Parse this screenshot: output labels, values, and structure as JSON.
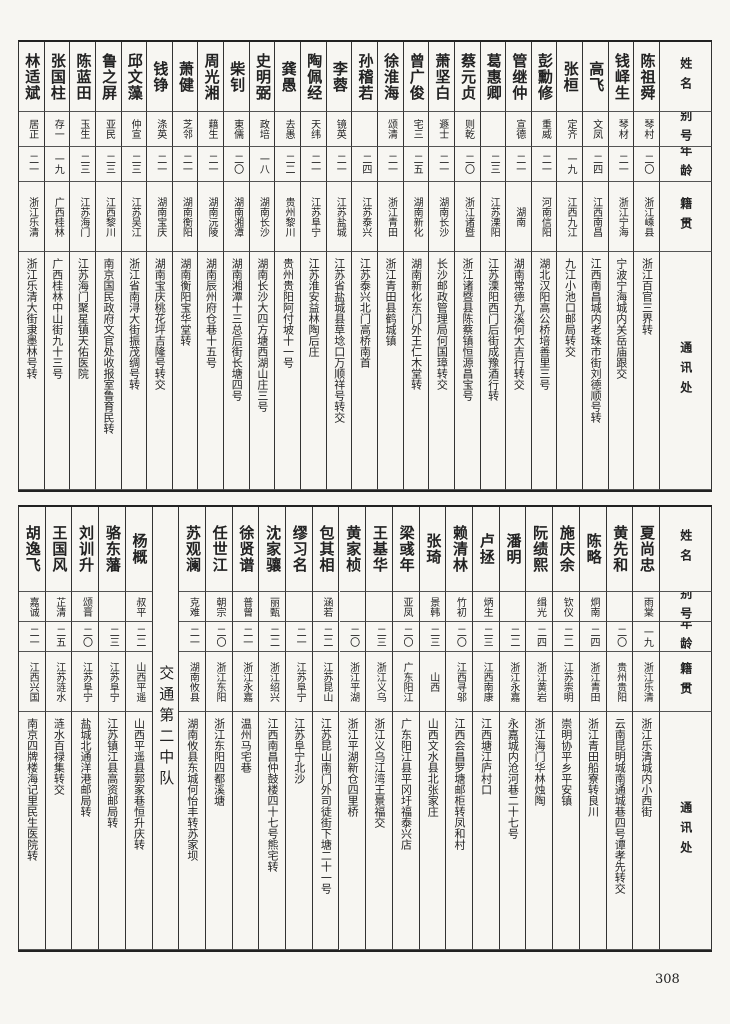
{
  "top": {
    "headers": [
      "姓名",
      "别号",
      "年龄",
      "籍贯",
      "通讯处"
    ],
    "rows": [
      {
        "name": "陈祖舜",
        "alias": "琴村",
        "age": "二〇",
        "native": "浙江嵊县",
        "address": "浙江百官三界转"
      },
      {
        "name": "钱峄生",
        "alias": "琴材",
        "age": "二一",
        "native": "浙江宁海",
        "address": "宁波宁海城内关岳庙跟交"
      },
      {
        "name": "高飞",
        "alias": "文凤",
        "age": "二四",
        "native": "江西南昌",
        "address": "江西南昌城内老珠市街刘德顺号转"
      },
      {
        "name": "张桓",
        "alias": "定齐",
        "age": "一九",
        "native": "江西九江",
        "address": "九江小池口邮局转交"
      },
      {
        "name": "彭勳修",
        "alias": "重威",
        "age": "二一",
        "native": "河南信阳",
        "address": "湖北汉阳高公桥培善里三号"
      },
      {
        "name": "管继仲",
        "alias": "宣德",
        "age": "二一",
        "native": "湖南",
        "address": "湖南常德九溪何大吉行转交"
      },
      {
        "name": "葛惠卿",
        "alias": null,
        "age": "二三",
        "native": "江苏溧阳",
        "address": "江苏溧阳西门后街成豫酒行转"
      },
      {
        "name": "蔡元贞",
        "alias": "则乾",
        "age": "二〇",
        "native": "浙江诸暨",
        "address": "浙江诸暨县陈蔡镇恒源昌宝号"
      },
      {
        "name": "萧坚白",
        "alias": "遯士",
        "age": "二一",
        "native": "湖南长沙",
        "address": "长沙邮政管理局何国璋转交"
      },
      {
        "name": "曾广俊",
        "alias": "宅三",
        "age": "二五",
        "native": "湖南新化",
        "address": "湖南新化东门外王仁木堂转"
      },
      {
        "name": "徐淮海",
        "alias": "颂清",
        "age": "二一",
        "native": "浙江青田",
        "address": "浙江青田县鹤城镇"
      },
      {
        "name": "孙稽若",
        "alias": null,
        "age": "二四",
        "native": "江苏泰兴",
        "address": "江苏泰兴北门高桥南首"
      },
      {
        "name": "李蓉",
        "alias": "镜英",
        "age": "二一",
        "native": "江苏盐城",
        "address": "江苏省盐城县草埝口万顺祥号转交"
      },
      {
        "name": "陶佩经",
        "alias": "天纬",
        "age": "二一",
        "native": "江苏阜宁",
        "address": "江苏淮安益林陶后庄"
      },
      {
        "name": "龚愚",
        "alias": "去愚",
        "age": "二二",
        "native": "贵州黎川",
        "address": "贵州贵阳阿付坡十一号"
      },
      {
        "name": "史明弼",
        "alias": "政培",
        "age": "一八",
        "native": "湖南长沙",
        "address": "湖南长沙大四方塘西湖山庄三号"
      },
      {
        "name": "柴钊",
        "alias": "東儒",
        "age": "二〇",
        "native": "湖南湘潭",
        "address": "湖南湘潭十三总后街长塘四号"
      },
      {
        "name": "周光湘",
        "alias": "藉生",
        "age": "二一",
        "native": "湖南沅陵",
        "address": "湖南辰州府仓巷十五号"
      },
      {
        "name": "萧健",
        "alias": "芝邻",
        "age": "二一",
        "native": "湖南衡阳",
        "address": "湖南衡阳宝华堂转"
      },
      {
        "name": "钱铮",
        "alias": "涤英",
        "age": "二一",
        "native": "湖南宝庆",
        "address": "湖南宝庆桃花坪吉隆号转交"
      },
      {
        "name": "邱文藻",
        "alias": "仲宣",
        "age": "二三",
        "native": "江苏吴江",
        "address": "浙江省南浔大街振茂绸号转"
      },
      {
        "name": "鲁之屏",
        "alias": "亚民",
        "age": "二三",
        "native": "江西黎川",
        "address": "南京国民政府文官处收报室鲁育民转"
      },
      {
        "name": "陈蓝田",
        "alias": "玉生",
        "age": "二三",
        "native": "江苏海门",
        "address": "江苏海门聚星镇天佑医院"
      },
      {
        "name": "张国柱",
        "alias": "存一",
        "age": "一九",
        "native": "广西桂林",
        "address": "广西桂林中山街九十三号"
      },
      {
        "name": "林适斌",
        "alias": "居正",
        "age": "二一",
        "native": "浙江乐清",
        "address": "浙江乐清大街隶墨林号转"
      }
    ]
  },
  "bottom": {
    "headers": [
      "姓名",
      "别号",
      "年龄",
      "籍贯",
      "通讯处"
    ],
    "rows": [
      {
        "name": "夏尚忠",
        "alias": "雨棠",
        "age": "一九",
        "native": "浙江乐清",
        "address": "浙江乐清城内小西街"
      },
      {
        "name": "黄先和",
        "alias": null,
        "age": "二〇",
        "native": "贵州贵阳",
        "address": "云南昆明城南通城巷四号谭孝先转交"
      },
      {
        "name": "陈略",
        "alias": "炯南",
        "age": "二四",
        "native": "浙江青田",
        "address": "浙江青田船寮转良川"
      },
      {
        "name": "施庆余",
        "alias": "钦仪",
        "age": "二二",
        "native": "江苏崇明",
        "address": "崇明协平乡平安镇"
      },
      {
        "name": "阮绩熙",
        "alias": "缉光",
        "age": "二四",
        "native": "浙江黄岩",
        "address": "浙江海门华林烛陶"
      },
      {
        "name": "潘明",
        "alias": null,
        "age": "二二",
        "native": "浙江永嘉",
        "address": "永嘉城内沧河巷二十七号"
      },
      {
        "name": "卢拯",
        "alias": "炳生",
        "age": "二三",
        "native": "江西南康",
        "address": "江西塘江庐村口"
      },
      {
        "name": "赖清林",
        "alias": "竹初",
        "age": "二〇",
        "native": "江西寻邬",
        "address": "江西会昌罗塘邮柜转凤和村"
      },
      {
        "name": "张琦",
        "alias": "景韩",
        "age": "二三",
        "native": "山西",
        "address": "山西文水县北张家庄"
      },
      {
        "name": "梁彧年",
        "alias": "亚凤",
        "age": "二〇",
        "native": "广东阳江",
        "address": "广东阳江县平冈圩福泰兴店"
      },
      {
        "name": "王基华",
        "alias": null,
        "age": "二三",
        "native": "浙江义乌",
        "address": "浙江义乌江湾王景福交"
      },
      {
        "name": "黄家桢",
        "alias": null,
        "age": "二〇",
        "native": "浙江平湖",
        "address": "浙江平湖新仓四里桥"
      },
      {
        "name": "包其相",
        "alias": "涵若",
        "age": "二二",
        "native": "江苏昆山",
        "address": "江苏昆山南门外司徒街下塘二十一号"
      },
      {
        "name": "缪习名",
        "alias": null,
        "age": "二一",
        "native": "江苏阜宁",
        "address": "江苏阜宁北沙"
      },
      {
        "name": "沈家骧",
        "alias": "丽甄",
        "age": "二二",
        "native": "浙江绍兴",
        "address": "江西南昌仲鼓楼四十七号熊宅转"
      },
      {
        "name": "徐贤谱",
        "alias": "普曾",
        "age": "二一",
        "native": "浙江永嘉",
        "address": "温州马宅巷"
      },
      {
        "name": "任世江",
        "alias": "朝宗",
        "age": "二〇",
        "native": "浙江东阳",
        "address": "浙江东阳四都溪塘"
      },
      {
        "name": "苏观澜",
        "alias": "克难",
        "age": "二一",
        "native": "湖南攸县",
        "address": "湖南攸县东城何怡丰转苏家坝"
      }
    ],
    "section": {
      "title": "交通第二中队",
      "rows": [
        {
          "name": "杨概",
          "alias": "叔平",
          "age": "二二",
          "native": "山西平遥",
          "address": "山西平遥县郭家巷恒升庆转"
        },
        {
          "name": "骆东藩",
          "alias": null,
          "age": "二三",
          "native": "江苏阜宁",
          "address": "江苏镇江县高资邮局转"
        },
        {
          "name": "刘训升",
          "alias": "颂晋",
          "age": "二〇",
          "native": "江苏阜宁",
          "address": "盐城北通洋港邮局转"
        },
        {
          "name": "王国风",
          "alias": "芷清",
          "age": "二五",
          "native": "江苏涟水",
          "address": "涟水百禄集转交"
        },
        {
          "name": "胡逸飞",
          "alias": "嘉诚",
          "age": "二一",
          "native": "江西兴国",
          "address": "南京四牌楼海记里民生医院转"
        }
      ]
    }
  },
  "page_number": "308"
}
